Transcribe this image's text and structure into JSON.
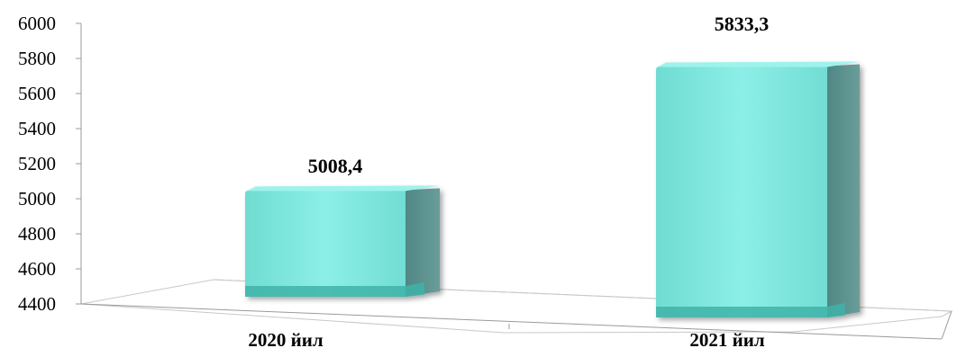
{
  "chart_data": {
    "type": "bar",
    "categories": [
      "2020 йил",
      "2021 йил"
    ],
    "values": [
      5008.4,
      5833.3
    ],
    "value_labels": [
      "5008,4",
      "5833,3"
    ],
    "ylim": [
      4400,
      6000
    ],
    "yticks": [
      4400,
      4600,
      4800,
      5000,
      5200,
      5400,
      5600,
      5800,
      6000
    ],
    "title": "",
    "xlabel": "",
    "ylabel": "",
    "grid": false,
    "legend": "none",
    "bar_color": "#7ee8df",
    "bar_side_color": "#5a8f8c",
    "bar_base_color": "#3fb3a8"
  }
}
